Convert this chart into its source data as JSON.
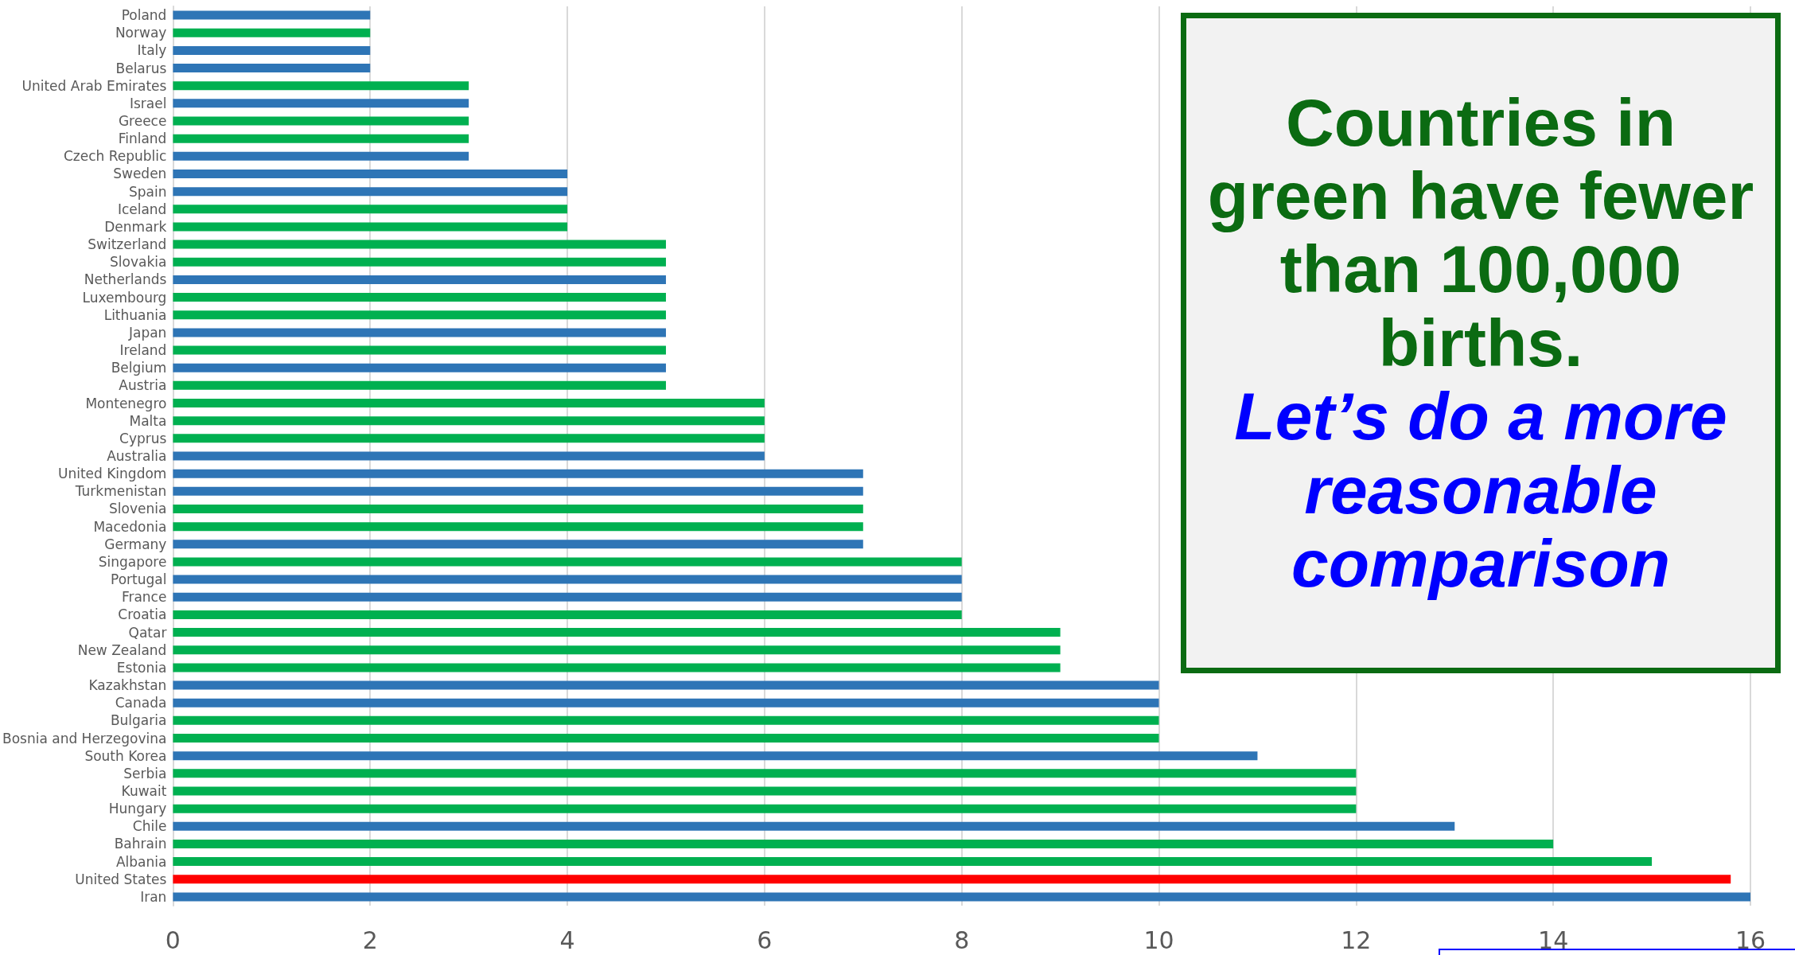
{
  "chart_data": {
    "type": "bar",
    "orientation": "horizontal",
    "categories": [
      "Poland",
      "Norway",
      "Italy",
      "Belarus",
      "United Arab Emirates",
      "Israel",
      "Greece",
      "Finland",
      "Czech Republic",
      "Sweden",
      "Spain",
      "Iceland",
      "Denmark",
      "Switzerland",
      "Slovakia",
      "Netherlands",
      "Luxembourg",
      "Lithuania",
      "Japan",
      "Ireland",
      "Belgium",
      "Austria",
      "Montenegro",
      "Malta",
      "Cyprus",
      "Australia",
      "United Kingdom",
      "Turkmenistan",
      "Slovenia",
      "Macedonia",
      "Germany",
      "Singapore",
      "Portugal",
      "France",
      "Croatia",
      "Qatar",
      "New Zealand",
      "Estonia",
      "Kazakhstan",
      "Canada",
      "Bulgaria",
      "Bosnia and Herzegovina",
      "South Korea",
      "Serbia",
      "Kuwait",
      "Hungary",
      "Chile",
      "Bahrain",
      "Albania",
      "United States",
      "Iran"
    ],
    "values": [
      2,
      2,
      2,
      2,
      3,
      3,
      3,
      3,
      3,
      4,
      4,
      4,
      4,
      5,
      5,
      5,
      5,
      5,
      5,
      5,
      5,
      5,
      6,
      6,
      6,
      6,
      7,
      7,
      7,
      7,
      7,
      8,
      8,
      8,
      8,
      9,
      9,
      9,
      10,
      10,
      10,
      10,
      11,
      12,
      12,
      12,
      13,
      14,
      15,
      15.8,
      16
    ],
    "colors": [
      "#2e75b6",
      "#00b050",
      "#2e75b6",
      "#2e75b6",
      "#00b050",
      "#2e75b6",
      "#00b050",
      "#00b050",
      "#2e75b6",
      "#2e75b6",
      "#2e75b6",
      "#00b050",
      "#00b050",
      "#00b050",
      "#00b050",
      "#2e75b6",
      "#00b050",
      "#00b050",
      "#2e75b6",
      "#00b050",
      "#2e75b6",
      "#00b050",
      "#00b050",
      "#00b050",
      "#00b050",
      "#2e75b6",
      "#2e75b6",
      "#2e75b6",
      "#00b050",
      "#00b050",
      "#2e75b6",
      "#00b050",
      "#2e75b6",
      "#2e75b6",
      "#00b050",
      "#00b050",
      "#00b050",
      "#00b050",
      "#2e75b6",
      "#2e75b6",
      "#00b050",
      "#00b050",
      "#2e75b6",
      "#00b050",
      "#00b050",
      "#00b050",
      "#2e75b6",
      "#00b050",
      "#00b050",
      "#ff0000",
      "#2e75b6"
    ],
    "xlim": [
      0,
      16
    ],
    "xticks": [
      0,
      2,
      4,
      6,
      8,
      10,
      12,
      14,
      16
    ],
    "grid": "x",
    "annotations": [
      "Countries in green have fewer than 100,000 births.",
      "Let’s do a more reasonable comparison"
    ]
  }
}
